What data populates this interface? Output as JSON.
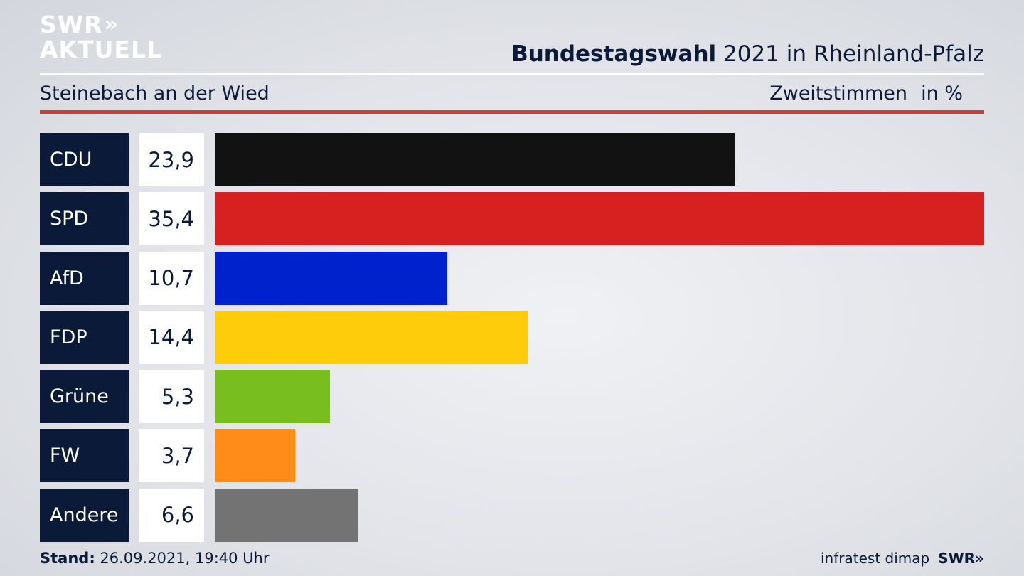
{
  "logo": {
    "line1": "SWR",
    "chevrons": "»",
    "line2": "AKTUELL"
  },
  "header": {
    "title_bold": "Bundestagswahl",
    "title_rest": " 2021 in Rheinland-Pfalz",
    "subtitle": "Steinebach an der Wied",
    "metric": "Zweitstimmen",
    "unit": "in %"
  },
  "chart_data": {
    "type": "bar",
    "orientation": "horizontal",
    "title": "Bundestagswahl 2021 in Rheinland-Pfalz",
    "subtitle": "Steinebach an der Wied",
    "xlabel": "Zweitstimmen",
    "unit": "in %",
    "categories": [
      "CDU",
      "SPD",
      "AfD",
      "FDP",
      "Grüne",
      "FW",
      "Andere"
    ],
    "values": [
      23.9,
      35.4,
      10.7,
      14.4,
      5.3,
      3.7,
      6.6
    ],
    "value_labels": [
      "23,9",
      "35,4",
      "10,7",
      "14,4",
      "5,3",
      "3,7",
      "6,6"
    ],
    "colors": [
      "#121212",
      "#d72020",
      "#0022cc",
      "#fecc0a",
      "#78be1e",
      "#ff8c19",
      "#737373"
    ],
    "xlim": [
      0,
      35.4
    ],
    "grid": false,
    "legend": "none"
  },
  "footer": {
    "stand_label": "Stand:",
    "stand_value": " 26.09.2021, 19:40 Uhr",
    "source": "infratest dimap",
    "brand": "SWR»"
  }
}
